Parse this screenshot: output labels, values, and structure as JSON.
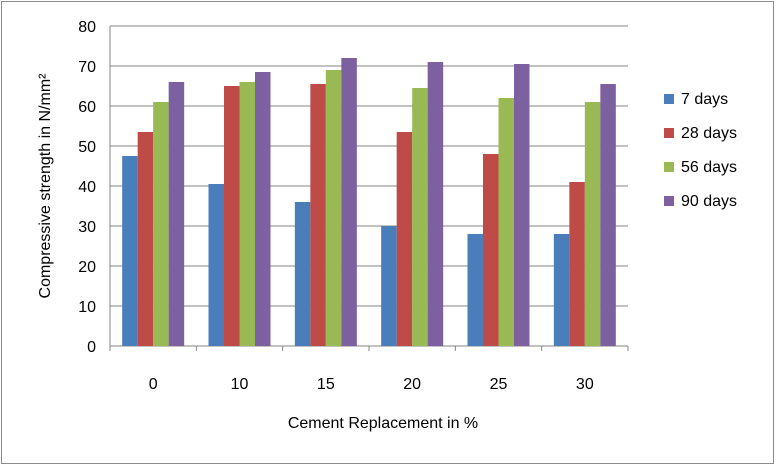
{
  "chart_data": {
    "type": "bar",
    "title": "",
    "xlabel": "Cement Replacement in %",
    "ylabel": "Compressive strength in N/mm²",
    "ylim": [
      0,
      80
    ],
    "yticks": [
      0,
      10,
      20,
      30,
      40,
      50,
      60,
      70,
      80
    ],
    "grid": true,
    "legend_position": "right",
    "categories": [
      "0",
      "10",
      "15",
      "20",
      "25",
      "30"
    ],
    "series": [
      {
        "name": "7 days",
        "color": "#4a7ebb",
        "values": [
          47.5,
          40.5,
          36.0,
          30.0,
          28.0,
          28.0
        ]
      },
      {
        "name": "28 days",
        "color": "#be4b48",
        "values": [
          53.5,
          65.0,
          65.5,
          53.5,
          48.0,
          41.0
        ]
      },
      {
        "name": "56 days",
        "color": "#98b954",
        "values": [
          61.0,
          66.0,
          69.0,
          64.5,
          62.0,
          61.0
        ]
      },
      {
        "name": "90 days",
        "color": "#7d60a0",
        "values": [
          66.0,
          68.5,
          72.0,
          71.0,
          70.5,
          65.5
        ]
      }
    ]
  }
}
